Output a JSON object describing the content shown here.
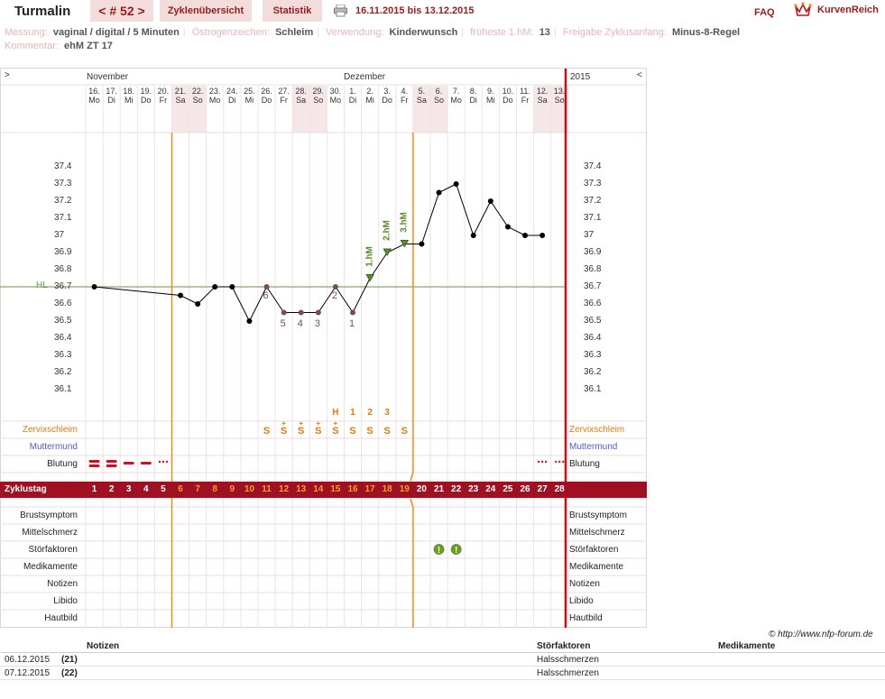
{
  "header": {
    "app_name": "Turmalin",
    "cycle_nav": "< # 52 >",
    "tabs": [
      "Zyklenübersicht",
      "Statistik"
    ],
    "period": "16.11.2015 bis 13.12.2015",
    "faq": "FAQ",
    "logo": "KurvenReich"
  },
  "info": {
    "messung_label": "Messung:",
    "messung": "vaginal / digital / 5 Minuten",
    "oestrogen_label": "Östrogenzeichen:",
    "oestrogen": "Schleim",
    "verwendung_label": "Verwendung:",
    "verwendung": "Kinderwunsch",
    "hm_label": "früheste 1.hM:",
    "hm": "13",
    "freigabe_label": "Freigabe Zyklusanfang:",
    "freigabe": "Minus-8-Regel",
    "kommentar_label": "Kommentar:",
    "kommentar": "ehM ZT 17"
  },
  "chart_data": {
    "type": "line",
    "months": [
      "November",
      "Dezember"
    ],
    "year_label": "2015",
    "nav_left": ">",
    "nav_right": "<",
    "dates": [
      "16.",
      "17.",
      "18.",
      "19.",
      "20.",
      "21.",
      "22.",
      "23.",
      "24.",
      "25.",
      "26.",
      "27.",
      "28.",
      "29.",
      "30.",
      "1.",
      "2.",
      "3.",
      "4.",
      "5.",
      "6.",
      "7.",
      "8.",
      "9.",
      "10.",
      "11.",
      "12.",
      "13."
    ],
    "weekdays": [
      "Mo",
      "Di",
      "Mi",
      "Do",
      "Fr",
      "Sa",
      "So",
      "Mo",
      "Di",
      "Mi",
      "Do",
      "Fr",
      "Sa",
      "So",
      "Mo",
      "Di",
      "Mi",
      "Do",
      "Fr",
      "Sa",
      "So",
      "Mo",
      "Di",
      "Mi",
      "Do",
      "Fr",
      "Sa",
      "So"
    ],
    "y_ticks": [
      "37.4",
      "37.3",
      "37.2",
      "37.1",
      "37",
      "36.9",
      "36.8",
      "36.7",
      "36.6",
      "36.5",
      "36.4",
      "36.3",
      "36.2",
      "36.1"
    ],
    "ylim": [
      36.1,
      37.4
    ],
    "temperatures": [
      36.7,
      null,
      null,
      null,
      null,
      36.65,
      36.6,
      36.7,
      36.7,
      36.5,
      36.7,
      36.55,
      36.55,
      36.55,
      36.7,
      36.55,
      36.75,
      36.9,
      36.95,
      36.95,
      37.25,
      37.3,
      37.0,
      37.2,
      37.05,
      37.0,
      37.0,
      null
    ],
    "point_labels": {
      "10": "6",
      "11": "5",
      "12": "4",
      "13": "3",
      "14": "2",
      "15": "1"
    },
    "hm_labels": {
      "16": "1.hM",
      "17": "2.hM",
      "18": "3.hM"
    },
    "hl_label": "HL",
    "hl_value": 36.7,
    "phase_lines_after_day": [
      5,
      19
    ],
    "cervix_peak_labels": {
      "14": "H",
      "15": "1",
      "16": "2",
      "17": "3"
    },
    "rows_left": [
      "Zervixschleim",
      "Muttermund",
      "Blutung"
    ],
    "rows_lower": [
      "Brustsymptom",
      "Mittelschmerz",
      "Störfaktoren",
      "Medikamente",
      "Notizen",
      "Libido",
      "Hautbild"
    ],
    "cycle_title": "Zyklustag",
    "cycle_days": [
      "1",
      "2",
      "3",
      "4",
      "5",
      "6",
      "7",
      "8",
      "9",
      "10",
      "11",
      "12",
      "13",
      "14",
      "15",
      "16",
      "17",
      "18",
      "19",
      "20",
      "21",
      "22",
      "23",
      "24",
      "25",
      "26",
      "27",
      "28"
    ],
    "colors": {
      "curve": "#000000",
      "hl": "#6a9a3a",
      "phase": "#f08a1c",
      "cycle_end": "#c0101a",
      "bar": "#9f1022",
      "weekend": "#f5e6e8",
      "label_pink": "#7a4a5a",
      "green": "#5a8a2a"
    }
  },
  "footer": {
    "copyright": "© http://www.nfp-forum.de",
    "col_notizen": "Notizen",
    "col_stoer": "Störfaktoren",
    "col_medi": "Medikamente",
    "rows": [
      {
        "date": "06.12.2015",
        "day": "(21)",
        "stoer": "Halsschmerzen"
      },
      {
        "date": "07.12.2015",
        "day": "(22)",
        "stoer": "Halsschmerzen"
      }
    ]
  }
}
